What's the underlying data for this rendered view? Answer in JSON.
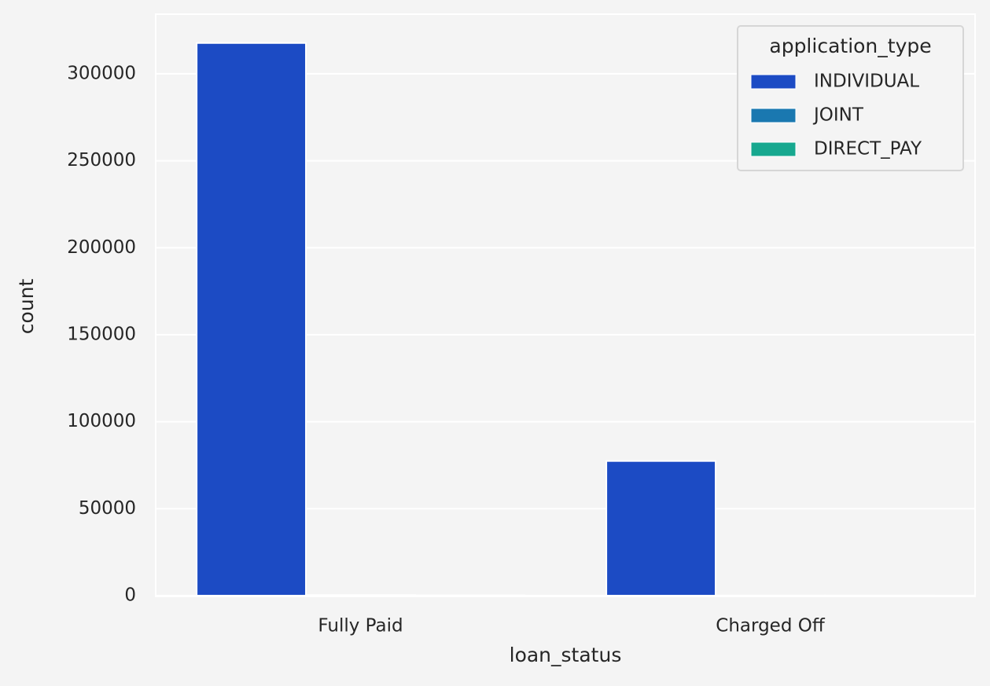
{
  "chart_data": {
    "type": "bar",
    "x_label": "loan_status",
    "y_label": "count",
    "categories": [
      "Fully Paid",
      "Charged Off"
    ],
    "series": [
      {
        "name": "INDIVIDUAL",
        "color": "#1c4bc4",
        "values": [
          317700,
          77400
        ]
      },
      {
        "name": "JOINT",
        "color": "#1a78b0",
        "values": [
          350,
          75
        ]
      },
      {
        "name": "DIRECT_PAY",
        "color": "#17a88f",
        "values": [
          200,
          80
        ]
      }
    ],
    "legend_title": "application_type",
    "legend_loc": "upper right",
    "ylim": [
      0,
      334300
    ],
    "yticks": [
      0,
      50000,
      100000,
      150000,
      200000,
      250000,
      300000
    ],
    "grid": true
  }
}
